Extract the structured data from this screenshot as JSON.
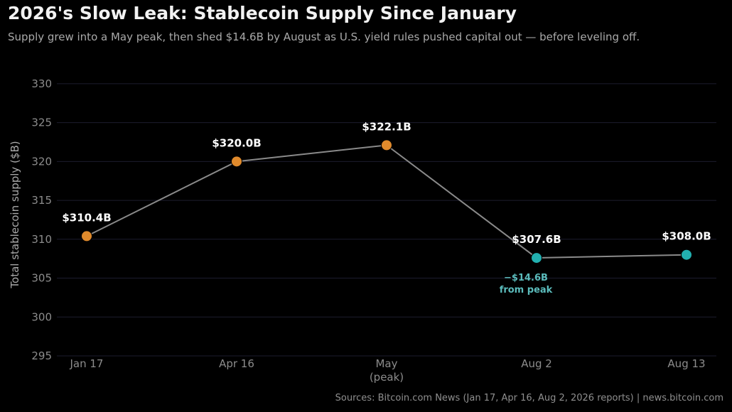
{
  "header": {
    "title": "2026's Slow Leak: Stablecoin Supply Since January",
    "subtitle": "Supply grew into a May peak, then shed $14.6B by August as U.S. yield rules pushed capital out — before leveling off."
  },
  "footer": {
    "source": "Sources: Bitcoin.com News (Jan 17, Apr 16, Aug 2, 2026 reports)  |  news.bitcoin.com"
  },
  "chart_data": {
    "type": "line",
    "title": "2026's Slow Leak: Stablecoin Supply Since January",
    "subtitle": "Supply grew into a May peak, then shed $14.6B by August as U.S. yield rules pushed capital out — before leveling off.",
    "xlabel": "",
    "ylabel": "Total stablecoin supply ($B)",
    "ylim": [
      295,
      332
    ],
    "yticks": [
      295,
      300,
      305,
      310,
      315,
      320,
      325,
      330
    ],
    "grid": true,
    "categories": [
      "Jan 17",
      "Apr 16",
      "May\n(peak)",
      "Aug 2",
      "Aug 13"
    ],
    "values": [
      310.4,
      320.0,
      322.1,
      307.6,
      308.0
    ],
    "data_labels": [
      "$310.4B",
      "$320.0B",
      "$322.1B",
      "$307.6B",
      "$308.0B"
    ],
    "point_colors": [
      "#e08a2c",
      "#e08a2c",
      "#e08a2c",
      "#22b0b0",
      "#22b0b0"
    ],
    "line_color": "#8a8a8a",
    "annotations": [
      {
        "category_index": 3,
        "text": [
          "−$14.6B",
          "from peak"
        ],
        "color": "#5bbcbc"
      }
    ]
  }
}
